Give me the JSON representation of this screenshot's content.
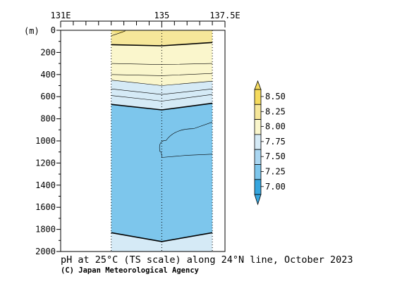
{
  "chart_data": {
    "type": "contour-section",
    "title": "pH at 25°C (TS scale) along 24°N line, October 2023",
    "credit": "(C) Japan Meteorological Agency",
    "y_unit": "(m)",
    "x_range": [
      131,
      137.5
    ],
    "y_range": [
      0,
      2000
    ],
    "y_reversed": true,
    "x_ticks": [
      {
        "value": 131,
        "label": "131E"
      },
      {
        "value": 135,
        "label": "135"
      },
      {
        "value": 137.5,
        "label": "137.5E"
      }
    ],
    "x_minor_step": 0.5,
    "y_ticks": [
      0,
      200,
      400,
      600,
      800,
      1000,
      1200,
      1400,
      1600,
      1800,
      2000
    ],
    "stations_lon": [
      133,
      135,
      137
    ],
    "data_extent_lon": [
      133,
      137
    ],
    "colorbar": {
      "levels": [
        "8.50",
        "8.25",
        "8.00",
        "7.75",
        "7.50",
        "7.25",
        "7.00"
      ],
      "colors": [
        "#f5db5e",
        "#f6e79a",
        "#faf6cc",
        "#d5eaf6",
        "#aad6f1",
        "#7dc6ec",
        "#35a6df"
      ]
    },
    "colors": {
      "band_8_25": "#f6e79a",
      "band_8_00": "#faf6cc",
      "band_7_75": "#d5eaf6",
      "band_7_50": "#aad6f1",
      "band_7_25": "#7dc6ec",
      "band_7_00": "#35a6df"
    },
    "contours": [
      {
        "level": 8.0,
        "bold": true,
        "points": [
          [
            133,
            130
          ],
          [
            135,
            140
          ],
          [
            137,
            110
          ]
        ]
      },
      {
        "level": 7.9,
        "bold": false,
        "points": [
          [
            133,
            300
          ],
          [
            135,
            310
          ],
          [
            137,
            300
          ]
        ]
      },
      {
        "level": 7.85,
        "bold": false,
        "points": [
          [
            133,
            400
          ],
          [
            135,
            410
          ],
          [
            137,
            390
          ]
        ]
      },
      {
        "level": 7.75,
        "bold": false,
        "points": [
          [
            133,
            450
          ],
          [
            135,
            500
          ],
          [
            137,
            460
          ]
        ]
      },
      {
        "level": 7.7,
        "bold": false,
        "points": [
          [
            133,
            530
          ],
          [
            135,
            580
          ],
          [
            137,
            530
          ]
        ]
      },
      {
        "level": 7.65,
        "bold": false,
        "points": [
          [
            133,
            590
          ],
          [
            135,
            640
          ],
          [
            137,
            580
          ]
        ]
      },
      {
        "level": 7.5,
        "bold": true,
        "points": [
          [
            133,
            670
          ],
          [
            135,
            720
          ],
          [
            137,
            660
          ]
        ]
      },
      {
        "level": 7.45,
        "bold": false,
        "points": [
          [
            135,
            1150
          ],
          [
            134.85,
            1040
          ],
          [
            135.5,
            950
          ],
          [
            137,
            830
          ]
        ]
      },
      {
        "level": 7.45,
        "bold": false,
        "points": [
          [
            135,
            1150
          ],
          [
            136,
            1130
          ],
          [
            137,
            1120
          ]
        ]
      },
      {
        "level": 7.5,
        "bold": true,
        "points": [
          [
            133,
            1830
          ],
          [
            135,
            1910
          ],
          [
            137,
            1830
          ]
        ]
      }
    ]
  }
}
